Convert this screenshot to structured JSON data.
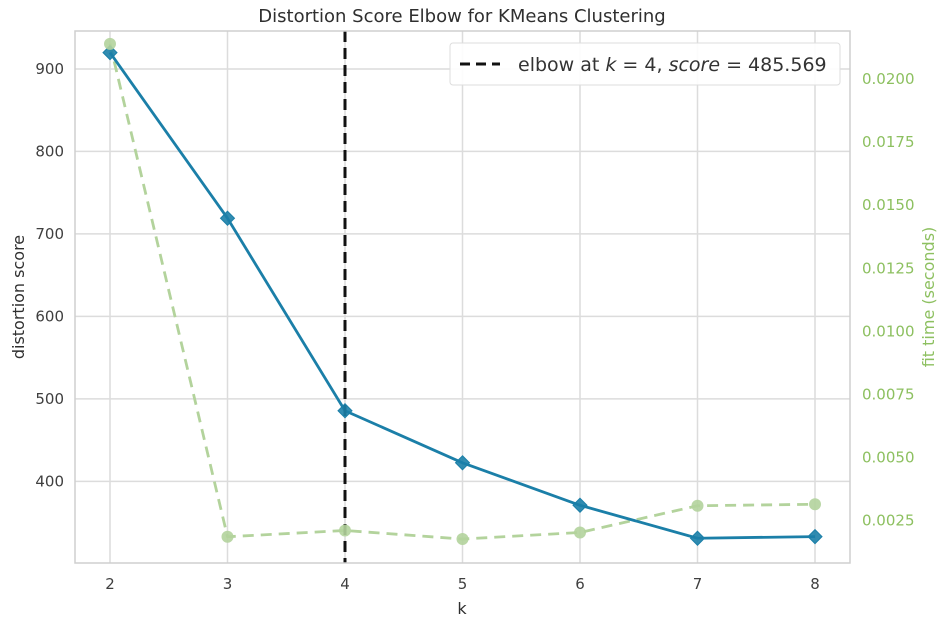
{
  "chart_data": {
    "type": "line",
    "title": "Distortion Score Elbow for KMeans Clustering",
    "xlabel": "k",
    "ylabel": "distortion score",
    "y2label": "fit time (seconds)",
    "x": [
      2,
      3,
      4,
      5,
      6,
      7,
      8
    ],
    "xticks": [
      "2",
      "3",
      "4",
      "5",
      "6",
      "7",
      "8"
    ],
    "ylim": [
      301,
      946
    ],
    "yticks": [
      "400",
      "500",
      "600",
      "700",
      "800",
      "900"
    ],
    "y2lim": [
      0.00081,
      0.02191
    ],
    "y2ticks": [
      "0.0025",
      "0.0050",
      "0.0075",
      "0.0100",
      "0.0125",
      "0.0150",
      "0.0175",
      "0.0200"
    ],
    "grid": true,
    "series": [
      {
        "name": "distortion score",
        "axis": "left",
        "values": [
          919.8,
          719.0,
          485.569,
          422.5,
          371.0,
          331.0,
          333.0
        ],
        "color": "#1b7fa8",
        "marker": "diamond",
        "line": "solid"
      },
      {
        "name": "fit time (seconds)",
        "axis": "right",
        "values": [
          0.0214,
          0.00185,
          0.0021,
          0.00176,
          0.00202,
          0.00308,
          0.00314
        ],
        "color": "#b3d39c",
        "marker": "circle",
        "line": "dashed"
      }
    ],
    "annotation": {
      "type": "vline",
      "x": 4,
      "color": "#111111",
      "legend_prefix": "elbow at ",
      "legend_k": "k",
      "legend_k_value": " = 4, ",
      "legend_score": "score",
      "legend_score_value": " = 485.569"
    },
    "legend_position": "top-right"
  }
}
